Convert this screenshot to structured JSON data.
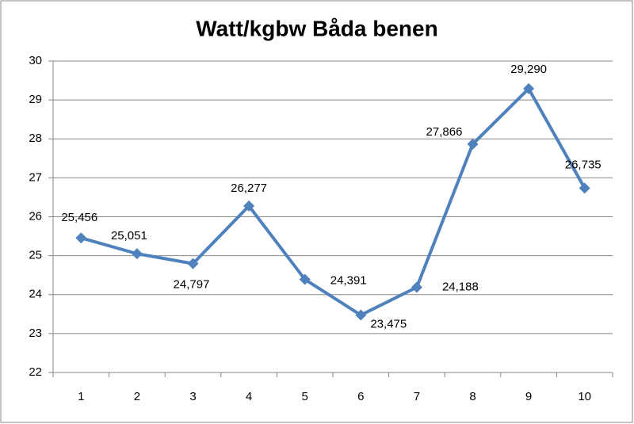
{
  "chart_data": {
    "type": "line",
    "title": "Watt/kgbw Båda benen",
    "categories": [
      "1",
      "2",
      "3",
      "4",
      "5",
      "6",
      "7",
      "8",
      "9",
      "10"
    ],
    "values": [
      25.456,
      25.051,
      24.797,
      26.277,
      24.391,
      23.475,
      24.188,
      27.866,
      29.29,
      26.735
    ],
    "value_labels": [
      "25,456",
      "25,051",
      "24,797",
      "26,277",
      "24,391",
      "23,475",
      "24,188",
      "27,866",
      "29,290",
      "26,735"
    ],
    "color": "#4f81bd",
    "ylim": [
      22,
      30
    ],
    "yticks": [
      22,
      23,
      24,
      25,
      26,
      27,
      28,
      29,
      30
    ],
    "grid": true
  }
}
